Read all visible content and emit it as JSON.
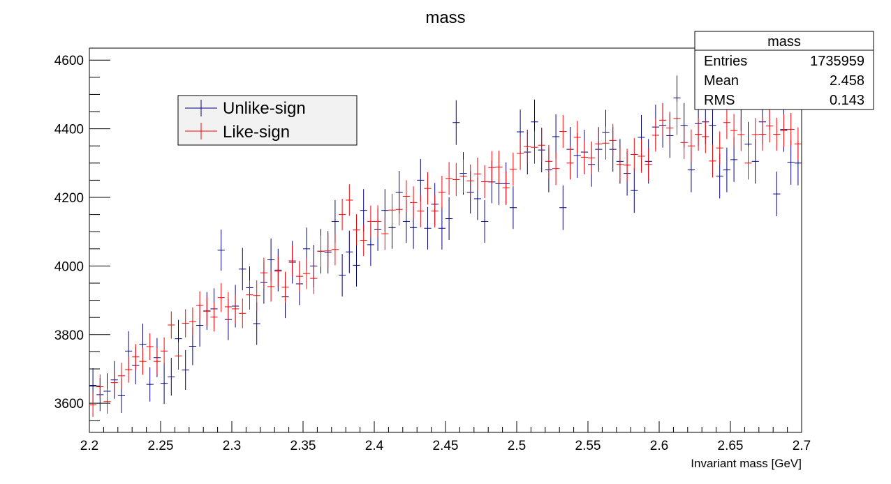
{
  "chart_data": {
    "type": "scatter",
    "title": "mass",
    "xlabel": "Invariant mass [GeV]",
    "ylabel": "",
    "xlim": [
      2.2,
      2.7
    ],
    "ylim": [
      3515,
      4635
    ],
    "x_ticks": [
      "2.2",
      "2.25",
      "2.3",
      "2.35",
      "2.4",
      "2.45",
      "2.5",
      "2.55",
      "2.6",
      "2.65",
      "2.7"
    ],
    "y_ticks": [
      "3600",
      "3800",
      "4000",
      "4200",
      "4400",
      "4600"
    ],
    "grid": false,
    "legend_position": "top-left",
    "bin_width": 0.005,
    "series": [
      {
        "name": "Unlike-sign",
        "color": "#00007f",
        "x": [
          2.2025,
          2.2075,
          2.2125,
          2.2175,
          2.2225,
          2.2275,
          2.2325,
          2.2375,
          2.2425,
          2.2475,
          2.2525,
          2.2575,
          2.2625,
          2.2675,
          2.2725,
          2.2775,
          2.2825,
          2.2875,
          2.2925,
          2.2975,
          2.3025,
          2.3075,
          2.3125,
          2.3175,
          2.3225,
          2.3275,
          2.3325,
          2.3375,
          2.3425,
          2.3475,
          2.3525,
          2.3575,
          2.3625,
          2.3675,
          2.3725,
          2.3775,
          2.3825,
          2.3875,
          2.3925,
          2.3975,
          2.4025,
          2.4075,
          2.4125,
          2.4175,
          2.4225,
          2.4275,
          2.4325,
          2.4375,
          2.4425,
          2.4475,
          2.4525,
          2.4575,
          2.4625,
          2.4675,
          2.4725,
          2.4775,
          2.4825,
          2.4875,
          2.4925,
          2.4975,
          2.5025,
          2.5075,
          2.5125,
          2.5175,
          2.5225,
          2.5275,
          2.5325,
          2.5375,
          2.5425,
          2.5475,
          2.5525,
          2.5575,
          2.5625,
          2.5675,
          2.5725,
          2.5775,
          2.5825,
          2.5875,
          2.5925,
          2.5975,
          2.6025,
          2.6075,
          2.6125,
          2.6175,
          2.6225,
          2.6275,
          2.6325,
          2.6375,
          2.6425,
          2.6475,
          2.6525,
          2.6575,
          2.6625,
          2.6675,
          2.6725,
          2.6775,
          2.6825,
          2.6875,
          2.6925,
          2.6975
        ],
        "y": [
          3652,
          3625,
          3635,
          3668,
          3622,
          3752,
          3710,
          3772,
          3655,
          3733,
          3658,
          3677,
          3788,
          3697,
          3766,
          3827,
          3869,
          3875,
          4046,
          3844,
          3883,
          3991,
          3937,
          3832,
          3952,
          4018,
          3988,
          3910,
          4011,
          3948,
          4050,
          4000,
          4043,
          4040,
          4130,
          3973,
          4041,
          4002,
          4162,
          4062,
          4106,
          4162,
          4112,
          4215,
          4130,
          4112,
          4250,
          4110,
          4180,
          4110,
          4138,
          4418,
          4270,
          4215,
          4196,
          4130,
          4245,
          4240,
          4240,
          4170,
          4391,
          4332,
          4420,
          4338,
          4280,
          4377,
          4170,
          4340,
          4322,
          4332,
          4296,
          4340,
          4390,
          4340,
          4305,
          4270,
          4220,
          4375,
          4305,
          4405,
          4410,
          4380,
          4490,
          4410,
          4280,
          4415,
          4420,
          4410,
          4262,
          4280,
          4310,
          4459,
          4355,
          4305,
          4420,
          4462,
          4210,
          4398,
          4302,
          4300
        ],
        "err": [
          50,
          48,
          52,
          55,
          50,
          58,
          55,
          60,
          50,
          57,
          60,
          55,
          55,
          58,
          55,
          62,
          55,
          60,
          60,
          60,
          62,
          62,
          62,
          62,
          62,
          62,
          62,
          62,
          62,
          62,
          62,
          62,
          65,
          62,
          62,
          62,
          62,
          62,
          62,
          62,
          62,
          62,
          62,
          62,
          62,
          62,
          62,
          62,
          62,
          62,
          62,
          65,
          62,
          62,
          62,
          62,
          62,
          62,
          62,
          62,
          65,
          65,
          65,
          65,
          65,
          65,
          65,
          65,
          65,
          65,
          65,
          65,
          65,
          65,
          65,
          65,
          65,
          65,
          65,
          65,
          65,
          65,
          65,
          65,
          65,
          65,
          65,
          65,
          65,
          65,
          65,
          65,
          65,
          65,
          65,
          65,
          65,
          65,
          65,
          65
        ]
      },
      {
        "name": "Like-sign",
        "color": "#ff0000",
        "x": [
          2.2025,
          2.2075,
          2.2125,
          2.2175,
          2.2225,
          2.2275,
          2.2325,
          2.2375,
          2.2425,
          2.2475,
          2.2525,
          2.2575,
          2.2625,
          2.2675,
          2.2725,
          2.2775,
          2.2825,
          2.2875,
          2.2925,
          2.2975,
          2.3025,
          2.3075,
          2.3125,
          2.3175,
          2.3225,
          2.3275,
          2.3325,
          2.3375,
          2.3425,
          2.3475,
          2.3525,
          2.3575,
          2.3625,
          2.3675,
          2.3725,
          2.3775,
          2.3825,
          2.3875,
          2.3925,
          2.3975,
          2.4025,
          2.4075,
          2.4125,
          2.4175,
          2.4225,
          2.4275,
          2.4325,
          2.4375,
          2.4425,
          2.4475,
          2.4525,
          2.4575,
          2.4625,
          2.4675,
          2.4725,
          2.4775,
          2.4825,
          2.4875,
          2.4925,
          2.4975,
          2.5025,
          2.5075,
          2.5125,
          2.5175,
          2.5225,
          2.5275,
          2.5325,
          2.5375,
          2.5425,
          2.5475,
          2.5525,
          2.5575,
          2.5625,
          2.5675,
          2.5725,
          2.5775,
          2.5825,
          2.5875,
          2.5925,
          2.5975,
          2.6025,
          2.6075,
          2.6125,
          2.6175,
          2.6225,
          2.6275,
          2.6325,
          2.6375,
          2.6425,
          2.6475,
          2.6525,
          2.6575,
          2.6625,
          2.6675,
          2.6725,
          2.6775,
          2.6825,
          2.6875,
          2.6925,
          2.6975
        ],
        "y": [
          3595,
          3648,
          3605,
          3660,
          3680,
          3698,
          3735,
          3722,
          3765,
          3722,
          3752,
          3828,
          3738,
          3833,
          3838,
          3885,
          3868,
          3851,
          3908,
          3881,
          3875,
          3862,
          3916,
          3914,
          3980,
          3940,
          3985,
          3938,
          4015,
          3970,
          3978,
          3964,
          4043,
          4044,
          4048,
          4150,
          4192,
          4105,
          4075,
          4130,
          4130,
          4094,
          4163,
          4165,
          4203,
          4185,
          4160,
          4226,
          4160,
          4215,
          4255,
          4252,
          4262,
          4248,
          4268,
          4246,
          4287,
          4288,
          4228,
          4282,
          4328,
          4348,
          4346,
          4352,
          4305,
          4284,
          4392,
          4300,
          4375,
          4317,
          4315,
          4356,
          4358,
          4366,
          4296,
          4294,
          4325,
          4320,
          4296,
          4381,
          4425,
          4402,
          4430,
          4360,
          4350,
          4384,
          4377,
          4306,
          4344,
          4418,
          4395,
          4383,
          4300,
          4383,
          4384,
          4408,
          4384,
          4394,
          4398,
          4356
        ],
        "err": [
          35,
          36,
          36,
          36,
          38,
          38,
          38,
          39,
          39,
          40,
          40,
          40,
          40,
          41,
          41,
          41,
          42,
          42,
          42,
          43,
          43,
          43,
          43,
          44,
          44,
          44,
          44,
          45,
          45,
          45,
          45,
          46,
          46,
          46,
          46,
          46,
          46,
          46,
          46,
          46,
          47,
          47,
          47,
          47,
          47,
          47,
          47,
          47,
          48,
          48,
          48,
          48,
          48,
          48,
          48,
          48,
          48,
          48,
          48,
          48,
          48,
          48,
          48,
          48,
          48,
          48,
          48,
          48,
          48,
          48,
          48,
          48,
          48,
          48,
          48,
          48,
          48,
          48,
          48,
          48,
          48,
          48,
          48,
          48,
          48,
          48,
          48,
          48,
          48,
          48,
          48,
          48,
          48,
          48,
          48,
          48,
          48,
          48,
          48,
          48
        ]
      }
    ],
    "stats_box": {
      "title": "mass",
      "rows": [
        {
          "label": "Entries",
          "value": "1735959"
        },
        {
          "label": "Mean",
          "value": "2.458"
        },
        {
          "label": "RMS",
          "value": "0.143"
        }
      ]
    }
  }
}
